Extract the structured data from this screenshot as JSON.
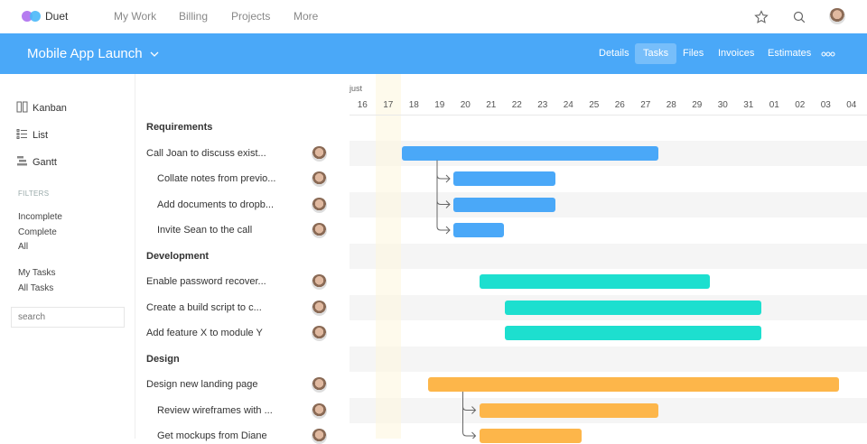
{
  "topbar": {
    "brand": "Duet",
    "nav": [
      "My Work",
      "Billing",
      "Projects",
      "More"
    ],
    "logo_colors": [
      "#b57cf0",
      "#4ab8f8"
    ]
  },
  "project": {
    "title": "Mobile App Launch",
    "tabs": [
      "Details",
      "Tasks",
      "Files",
      "Invoices",
      "Estimates"
    ],
    "active_tab": "Tasks",
    "more_icon": "more-dots-icon"
  },
  "sidebar": {
    "views": [
      "Kanban",
      "List",
      "Gantt"
    ],
    "filters_label": "FILTERS",
    "status_filters": [
      "Incomplete",
      "Complete",
      "All"
    ],
    "owner_filters": [
      "My Tasks",
      "All Tasks"
    ],
    "search_placeholder": "search"
  },
  "gantt": {
    "month": "just",
    "days": [
      "16",
      "17",
      "18",
      "19",
      "20",
      "21",
      "22",
      "23",
      "24",
      "25",
      "26",
      "27",
      "28",
      "29",
      "30",
      "31",
      "01",
      "02",
      "03",
      "04"
    ],
    "today": "17",
    "colors": {
      "Requirements": "#4aa8f8",
      "Development": "#1ddfcf",
      "Design": "#fdb64a"
    },
    "rows": [
      {
        "label": "Requirements",
        "type": "group",
        "group": "Requirements"
      },
      {
        "label": "Call Joan to discuss exist...",
        "type": "task",
        "group": "Requirements",
        "start": "18",
        "end": "27",
        "parent": true
      },
      {
        "label": "Collate notes from previo...",
        "type": "sub",
        "group": "Requirements",
        "start": "20",
        "end": "23"
      },
      {
        "label": "Add documents to dropb...",
        "type": "sub",
        "group": "Requirements",
        "start": "20",
        "end": "23"
      },
      {
        "label": "Invite Sean to the call",
        "type": "sub",
        "group": "Requirements",
        "start": "20",
        "end": "21"
      },
      {
        "label": "Development",
        "type": "group",
        "group": "Development"
      },
      {
        "label": "Enable password recover...",
        "type": "task",
        "group": "Development",
        "start": "21",
        "end": "29"
      },
      {
        "label": "Create a build script to c...",
        "type": "task",
        "group": "Development",
        "start": "22",
        "end": "31"
      },
      {
        "label": "Add feature X to module Y",
        "type": "task",
        "group": "Development",
        "start": "22",
        "end": "31"
      },
      {
        "label": "Design",
        "type": "group",
        "group": "Design"
      },
      {
        "label": "Design new landing page",
        "type": "task",
        "group": "Design",
        "start": "19",
        "end": "03",
        "parent": true
      },
      {
        "label": "Review wireframes with ...",
        "type": "sub",
        "group": "Design",
        "start": "21",
        "end": "27"
      },
      {
        "label": "Get mockups from Diane",
        "type": "sub",
        "group": "Design",
        "start": "21",
        "end": "24"
      }
    ]
  }
}
